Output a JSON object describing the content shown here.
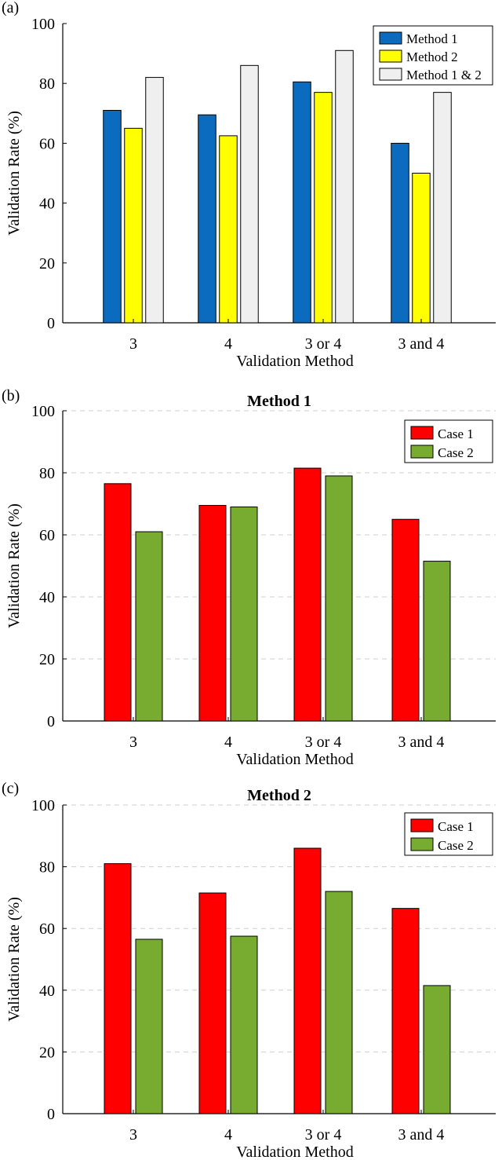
{
  "chart_data": [
    {
      "panel_label": "(a)",
      "type": "bar",
      "title": "",
      "xlabel": "Validation Method",
      "ylabel": "Validation Rate (%)",
      "ylim": [
        0,
        100
      ],
      "yticks": [
        "0",
        "20",
        "40",
        "60",
        "80",
        "100"
      ],
      "grid": false,
      "legend_position": "top-right",
      "categories": [
        "3",
        "4",
        "3 or 4",
        "3 and 4"
      ],
      "series": [
        {
          "name": "Method 1",
          "color": "#0b6bbf",
          "values": [
            71,
            69.5,
            80.5,
            60
          ]
        },
        {
          "name": "Method 2",
          "color": "#ffff00",
          "values": [
            65,
            62.5,
            77,
            50
          ]
        },
        {
          "name": "Method 1 & 2",
          "color": "#efefef",
          "values": [
            82,
            86,
            91,
            77
          ]
        }
      ]
    },
    {
      "panel_label": "(b)",
      "type": "bar",
      "title": "Method 1",
      "xlabel": "Validation Method",
      "ylabel": "Validation Rate (%)",
      "ylim": [
        0,
        100
      ],
      "yticks": [
        "0",
        "20",
        "40",
        "60",
        "80",
        "100"
      ],
      "grid": true,
      "legend_position": "top-right",
      "categories": [
        "3",
        "4",
        "3 or 4",
        "3 and 4"
      ],
      "series": [
        {
          "name": "Case 1",
          "color": "#ff0000",
          "values": [
            76.5,
            69.5,
            81.5,
            65
          ]
        },
        {
          "name": "Case 2",
          "color": "#77ac30",
          "values": [
            61,
            69,
            79,
            51.5
          ]
        }
      ]
    },
    {
      "panel_label": "(c)",
      "type": "bar",
      "title": "Method 2",
      "xlabel": "Validation Method",
      "ylabel": "Validation Rate (%)",
      "ylim": [
        0,
        100
      ],
      "yticks": [
        "0",
        "20",
        "40",
        "60",
        "80",
        "100"
      ],
      "grid": true,
      "legend_position": "top-right",
      "categories": [
        "3",
        "4",
        "3 or 4",
        "3 and 4"
      ],
      "series": [
        {
          "name": "Case 1",
          "color": "#ff0000",
          "values": [
            81,
            71.5,
            86,
            66.5
          ]
        },
        {
          "name": "Case 2",
          "color": "#77ac30",
          "values": [
            56.5,
            57.5,
            72,
            41.5
          ]
        }
      ]
    }
  ]
}
